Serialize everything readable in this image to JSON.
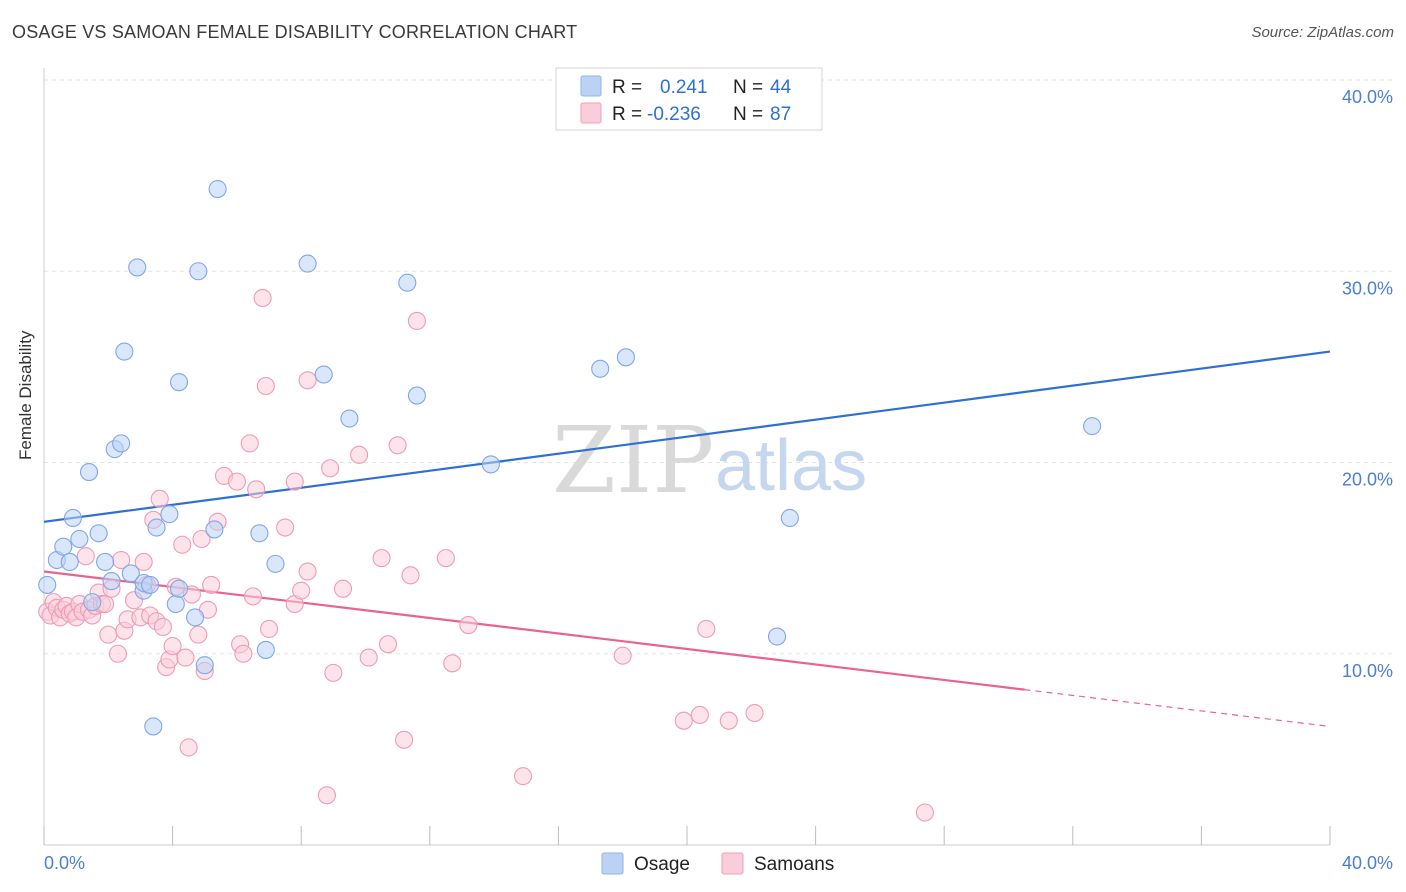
{
  "title": "OSAGE VS SAMOAN FEMALE DISABILITY CORRELATION CHART",
  "source": "Source: ZipAtlas.com",
  "watermark": {
    "zip": "ZIP",
    "atlas": "atlas"
  },
  "legend_top": {
    "r_label": "R =",
    "n_label": "N =",
    "rows": [
      {
        "r": "0.241",
        "n": "44",
        "color": "#8fb4ea",
        "fill": "#bcd2f4"
      },
      {
        "r": "-0.236",
        "n": "87",
        "color": "#f0a0ba",
        "fill": "#f9cdd9"
      }
    ]
  },
  "legend_bottom": [
    "Osage",
    "Samoans"
  ],
  "colors": {
    "osage": "#2e6fd4",
    "samoans": "#e8648f",
    "osage_fill": "#bcd2f4",
    "samoans_fill": "#f9cdd9",
    "tick": "#4a7fd0",
    "grid": "#e3e3e3"
  },
  "chart_data": {
    "type": "scatter",
    "title": "OSAGE VS SAMOAN FEMALE DISABILITY CORRELATION CHART",
    "xlabel": "",
    "ylabel": "Female Disability",
    "xlim": [
      0,
      40
    ],
    "ylim": [
      0,
      40
    ],
    "x_tick_labels": [
      "0.0%",
      "40.0%"
    ],
    "y_tick_labels": [
      "10.0%",
      "20.0%",
      "30.0%",
      "40.0%"
    ],
    "y_ticks": [
      10,
      20,
      30,
      40
    ],
    "grid": true,
    "legend_position": "top-center",
    "series": [
      {
        "name": "Osage",
        "r": 0.241,
        "n": 44,
        "trend": {
          "x0": 0,
          "y0": 16.9,
          "x1": 40,
          "y1": 25.8,
          "dashed_from": null
        },
        "points": [
          [
            0.1,
            13.6
          ],
          [
            0.4,
            14.9
          ],
          [
            0.6,
            15.6
          ],
          [
            0.8,
            14.8
          ],
          [
            0.9,
            17.1
          ],
          [
            1.1,
            16.0
          ],
          [
            1.4,
            19.5
          ],
          [
            1.5,
            12.7
          ],
          [
            1.7,
            16.3
          ],
          [
            1.9,
            14.8
          ],
          [
            2.1,
            13.8
          ],
          [
            2.2,
            20.7
          ],
          [
            2.4,
            21.0
          ],
          [
            2.5,
            25.8
          ],
          [
            2.7,
            14.2
          ],
          [
            2.9,
            30.2
          ],
          [
            3.1,
            13.3
          ],
          [
            3.1,
            13.7
          ],
          [
            3.4,
            6.2
          ],
          [
            3.5,
            16.6
          ],
          [
            3.9,
            17.3
          ],
          [
            4.1,
            12.6
          ],
          [
            4.2,
            24.2
          ],
          [
            4.7,
            11.9
          ],
          [
            4.8,
            30.0
          ],
          [
            5.0,
            9.4
          ],
          [
            5.3,
            16.5
          ],
          [
            5.4,
            34.3
          ],
          [
            6.7,
            16.3
          ],
          [
            6.9,
            10.2
          ],
          [
            7.2,
            14.7
          ],
          [
            8.2,
            30.4
          ],
          [
            8.7,
            24.6
          ],
          [
            9.5,
            22.3
          ],
          [
            11.3,
            29.4
          ],
          [
            11.6,
            23.5
          ],
          [
            13.9,
            19.9
          ],
          [
            17.3,
            24.9
          ],
          [
            18.1,
            25.5
          ],
          [
            23.2,
            17.1
          ],
          [
            22.8,
            10.9
          ],
          [
            32.6,
            21.9
          ],
          [
            4.2,
            13.4
          ],
          [
            3.3,
            13.6
          ]
        ]
      },
      {
        "name": "Samoans",
        "r": -0.236,
        "n": 87,
        "trend": {
          "x0": 0,
          "y0": 14.3,
          "x1": 40,
          "y1": 6.2,
          "dashed_from": 30.5
        },
        "points": [
          [
            0.1,
            12.2
          ],
          [
            0.2,
            12.0
          ],
          [
            0.3,
            12.7
          ],
          [
            0.4,
            12.4
          ],
          [
            0.5,
            11.9
          ],
          [
            0.6,
            12.3
          ],
          [
            0.7,
            12.5
          ],
          [
            0.8,
            12.1
          ],
          [
            0.9,
            12.2
          ],
          [
            1.0,
            11.9
          ],
          [
            1.1,
            12.6
          ],
          [
            1.2,
            12.2
          ],
          [
            1.3,
            15.1
          ],
          [
            1.4,
            12.3
          ],
          [
            1.5,
            12.0
          ],
          [
            1.6,
            12.5
          ],
          [
            1.7,
            13.2
          ],
          [
            1.8,
            12.6
          ],
          [
            1.9,
            12.6
          ],
          [
            2.0,
            11.0
          ],
          [
            2.1,
            13.4
          ],
          [
            2.3,
            10.0
          ],
          [
            2.4,
            14.9
          ],
          [
            2.5,
            11.2
          ],
          [
            2.6,
            11.8
          ],
          [
            2.8,
            12.8
          ],
          [
            3.0,
            11.9
          ],
          [
            3.1,
            14.8
          ],
          [
            3.2,
            13.6
          ],
          [
            3.3,
            12.0
          ],
          [
            3.4,
            17.0
          ],
          [
            3.5,
            11.7
          ],
          [
            3.6,
            18.1
          ],
          [
            3.7,
            11.4
          ],
          [
            3.8,
            9.3
          ],
          [
            3.9,
            9.7
          ],
          [
            4.0,
            10.4
          ],
          [
            4.1,
            13.5
          ],
          [
            4.3,
            15.7
          ],
          [
            4.4,
            9.8
          ],
          [
            4.6,
            13.1
          ],
          [
            4.8,
            11.0
          ],
          [
            4.9,
            16.0
          ],
          [
            5.0,
            9.1
          ],
          [
            5.1,
            12.3
          ],
          [
            5.2,
            13.6
          ],
          [
            5.4,
            16.9
          ],
          [
            5.6,
            19.3
          ],
          [
            6.0,
            19.0
          ],
          [
            6.1,
            10.5
          ],
          [
            6.2,
            10.0
          ],
          [
            6.4,
            21.0
          ],
          [
            6.5,
            13.0
          ],
          [
            6.6,
            18.6
          ],
          [
            6.8,
            28.6
          ],
          [
            6.9,
            24.0
          ],
          [
            7.0,
            11.3
          ],
          [
            7.5,
            16.6
          ],
          [
            7.8,
            12.6
          ],
          [
            7.8,
            19.0
          ],
          [
            8.0,
            13.3
          ],
          [
            8.2,
            14.3
          ],
          [
            8.2,
            24.3
          ],
          [
            8.8,
            2.6
          ],
          [
            8.9,
            19.7
          ],
          [
            9.0,
            9.0
          ],
          [
            9.3,
            13.4
          ],
          [
            9.8,
            20.4
          ],
          [
            10.1,
            9.8
          ],
          [
            10.5,
            15.0
          ],
          [
            10.7,
            10.5
          ],
          [
            11.0,
            20.9
          ],
          [
            11.2,
            5.5
          ],
          [
            11.4,
            14.1
          ],
          [
            11.6,
            27.4
          ],
          [
            12.5,
            15.0
          ],
          [
            12.7,
            9.5
          ],
          [
            13.2,
            11.5
          ],
          [
            14.9,
            3.6
          ],
          [
            18.0,
            9.9
          ],
          [
            19.9,
            6.5
          ],
          [
            20.4,
            6.8
          ],
          [
            20.6,
            11.3
          ],
          [
            21.3,
            6.5
          ],
          [
            22.1,
            6.9
          ],
          [
            27.4,
            1.7
          ],
          [
            4.5,
            5.1
          ]
        ]
      }
    ]
  }
}
